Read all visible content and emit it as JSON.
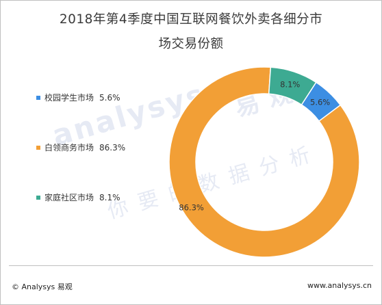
{
  "title_line1": "2018年第4季度中国互联网餐饮外卖各细分市",
  "title_line2": "场交易份额",
  "watermark": {
    "brand": "analysys",
    "cn": "易观",
    "slogan": "你要的数据分析"
  },
  "chart_data": {
    "type": "pie",
    "donut": true,
    "categories": [
      "校园学生市场",
      "白领商务市场",
      "家庭社区市场"
    ],
    "values": [
      5.6,
      86.3,
      8.1
    ],
    "labels": [
      "5.6%",
      "86.3%",
      "8.1%"
    ],
    "colors": [
      "#3c8ee3",
      "#f29f36",
      "#3daa92"
    ],
    "legend_position": "left"
  },
  "footer": {
    "left": "© Analysys 易观",
    "right": "www.analysys.cn"
  }
}
